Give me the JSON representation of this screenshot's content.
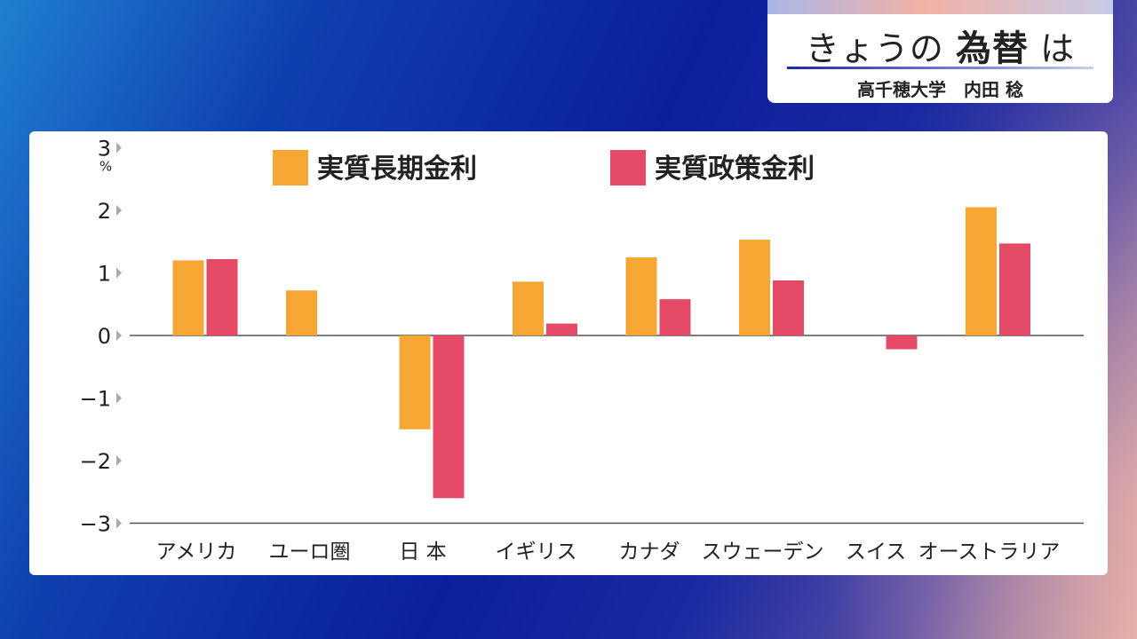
{
  "header": {
    "title_prefix": "きょうの",
    "title_strong": "為替",
    "title_suffix": "は",
    "speaker": "高千穂大学　内田 稔"
  },
  "colors": {
    "long_term": "#f6a733",
    "policy": "#e54a66",
    "axis": "#555555",
    "tick_marker": "#aaaaaa"
  },
  "chart_data": {
    "type": "bar",
    "categories": [
      "アメリカ",
      "ユーロ圏",
      "日 本",
      "イギリス",
      "カナダ",
      "スウェーデン",
      "スイス",
      "オーストラリア"
    ],
    "series": [
      {
        "name": "実質長期金利",
        "values": [
          1.2,
          0.72,
          -1.5,
          0.86,
          1.25,
          1.53,
          null,
          2.05
        ]
      },
      {
        "name": "実質政策金利",
        "values": [
          1.22,
          null,
          -2.6,
          0.19,
          0.58,
          0.88,
          -0.22,
          1.47
        ]
      }
    ],
    "yticks": [
      "3",
      "2",
      "1",
      "0",
      "−1",
      "−2",
      "−3"
    ],
    "ytick_values": [
      3,
      2,
      1,
      0,
      -1,
      -2,
      -3
    ],
    "yunit": "%",
    "ylim": [
      -3,
      3
    ],
    "legend_position": "top"
  }
}
